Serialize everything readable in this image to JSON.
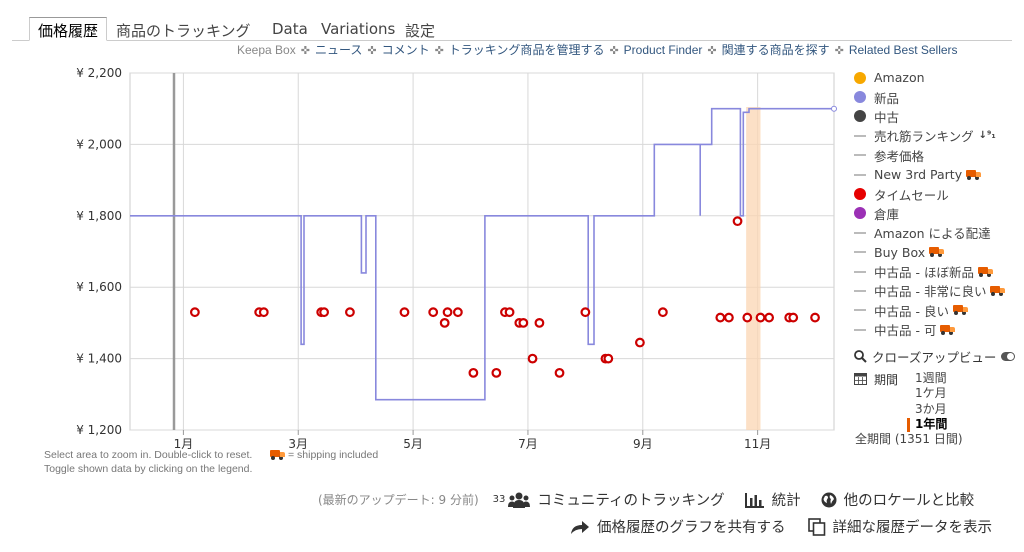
{
  "tabs": [
    {
      "label": "価格履歴"
    },
    {
      "label": "商品のトラッキング"
    },
    {
      "label": "Data"
    },
    {
      "label": "Variations"
    },
    {
      "label": "設定"
    }
  ],
  "links": {
    "keepa_box": "Keepa Box",
    "items": [
      "ニュース",
      "コメント",
      "トラッキング商品を管理する",
      "Product Finder",
      "関連する商品を探す",
      "Related Best Sellers"
    ]
  },
  "notes": {
    "zoom": "Select area to zoom in. Double-click to reset.",
    "shipping": "= shipping included",
    "toggle": "Toggle shown data by clicking on the legend."
  },
  "legend": [
    {
      "label": "Amazon",
      "marker": "dot",
      "color": "#f7a800"
    },
    {
      "label": "新品",
      "marker": "dot",
      "color": "#8888dd"
    },
    {
      "label": "中古",
      "marker": "dot",
      "color": "#444444"
    },
    {
      "label": "売れ筋ランキング",
      "marker": "dash",
      "icon": "sort-numeric-icon"
    },
    {
      "label": "参考価格",
      "marker": "dash"
    },
    {
      "label": "New 3rd Party",
      "marker": "dash",
      "icon": "truck-icon"
    },
    {
      "label": "タイムセール",
      "marker": "dot",
      "color": "#e60000"
    },
    {
      "label": "倉庫",
      "marker": "dot",
      "color": "#9b30b5"
    },
    {
      "label": "Amazon による配達",
      "marker": "dash"
    },
    {
      "label": "Buy Box",
      "marker": "dash",
      "icon": "truck-icon"
    },
    {
      "label": "中古品 - ほぼ新品",
      "marker": "dash",
      "icon": "truck-icon"
    },
    {
      "label": "中古品 - 非常に良い",
      "marker": "dash",
      "icon": "truck-icon"
    },
    {
      "label": "中古品 - 良い",
      "marker": "dash",
      "icon": "truck-icon"
    },
    {
      "label": "中古品 - 可",
      "marker": "dash",
      "icon": "truck-icon"
    }
  ],
  "zoom_label": "クローズアップビュー",
  "period": {
    "label": "期間",
    "options": [
      "1週間",
      "1ケ月",
      "3か月",
      "1年間",
      "全期間 (1351 日間)"
    ],
    "selected": "1年間"
  },
  "footer": {
    "updated": "(最新のアップデート: 9 分前)",
    "community_count": "33",
    "community": "コミュニティのトラッキング",
    "stats": "統計",
    "compare": "他のロケールと比較",
    "share": "価格履歴のグラフを共有する",
    "detail": "詳細な履歴データを表示"
  },
  "chart_data": {
    "type": "line",
    "x_tick_labels": [
      "1月",
      "3月",
      "5月",
      "7月",
      "9月",
      "11月"
    ],
    "y_tick_labels": [
      "¥ 1,200",
      "¥ 1,400",
      "¥ 1,600",
      "¥ 1,800",
      "¥ 2,000",
      "¥ 2,200"
    ],
    "x_ticks": [
      1,
      3,
      5,
      7,
      9,
      11
    ],
    "y_ticks": [
      1200,
      1400,
      1600,
      1800,
      2000,
      2200
    ],
    "xlim": [
      0.07,
      12.33
    ],
    "ylim": [
      1200,
      2200
    ],
    "grid": true,
    "x_unit": "month",
    "series": [
      {
        "name": "新品",
        "color": "#8888dd",
        "style": "step",
        "points": [
          [
            0.07,
            1800
          ],
          [
            3.05,
            1800
          ],
          [
            3.05,
            1440
          ],
          [
            3.1,
            1440
          ],
          [
            3.1,
            1800
          ],
          [
            4.1,
            1800
          ],
          [
            4.1,
            1640
          ],
          [
            4.18,
            1640
          ],
          [
            4.18,
            1800
          ],
          [
            4.35,
            1800
          ],
          [
            4.35,
            1285
          ],
          [
            6.25,
            1285
          ],
          [
            6.25,
            1800
          ],
          [
            8.05,
            1800
          ],
          [
            8.05,
            1440
          ],
          [
            8.15,
            1440
          ],
          [
            8.15,
            1800
          ],
          [
            9.2,
            1800
          ],
          [
            9.2,
            2000
          ],
          [
            10.0,
            2000
          ],
          [
            10.0,
            1800
          ],
          [
            10.0,
            2000
          ],
          [
            10.2,
            2000
          ],
          [
            10.2,
            2100
          ],
          [
            10.7,
            2100
          ],
          [
            10.7,
            1800
          ],
          [
            10.75,
            1800
          ],
          [
            10.75,
            2090
          ],
          [
            10.85,
            2090
          ],
          [
            10.85,
            2100
          ],
          [
            12.33,
            2100
          ]
        ]
      },
      {
        "name": "タイムセール",
        "color": "#cc0000",
        "style": "markers",
        "points": [
          [
            1.2,
            1530
          ],
          [
            2.32,
            1530
          ],
          [
            2.4,
            1530
          ],
          [
            3.4,
            1530
          ],
          [
            3.45,
            1530
          ],
          [
            3.9,
            1530
          ],
          [
            4.85,
            1530
          ],
          [
            5.35,
            1530
          ],
          [
            5.55,
            1500
          ],
          [
            5.6,
            1530
          ],
          [
            5.78,
            1530
          ],
          [
            6.05,
            1360
          ],
          [
            6.45,
            1360
          ],
          [
            6.6,
            1530
          ],
          [
            6.68,
            1530
          ],
          [
            6.85,
            1500
          ],
          [
            6.92,
            1500
          ],
          [
            7.08,
            1400
          ],
          [
            7.2,
            1500
          ],
          [
            7.55,
            1360
          ],
          [
            8.0,
            1530
          ],
          [
            8.35,
            1400
          ],
          [
            8.4,
            1400
          ],
          [
            8.95,
            1445
          ],
          [
            9.35,
            1530
          ],
          [
            10.35,
            1515
          ],
          [
            10.5,
            1515
          ],
          [
            10.65,
            1785
          ],
          [
            10.82,
            1515
          ],
          [
            11.05,
            1515
          ],
          [
            11.2,
            1515
          ],
          [
            11.55,
            1515
          ],
          [
            11.62,
            1515
          ],
          [
            12.0,
            1515
          ]
        ]
      }
    ],
    "highlight_x_range": [
      10.8,
      11.05
    ],
    "marker_line_x": 0.07
  }
}
